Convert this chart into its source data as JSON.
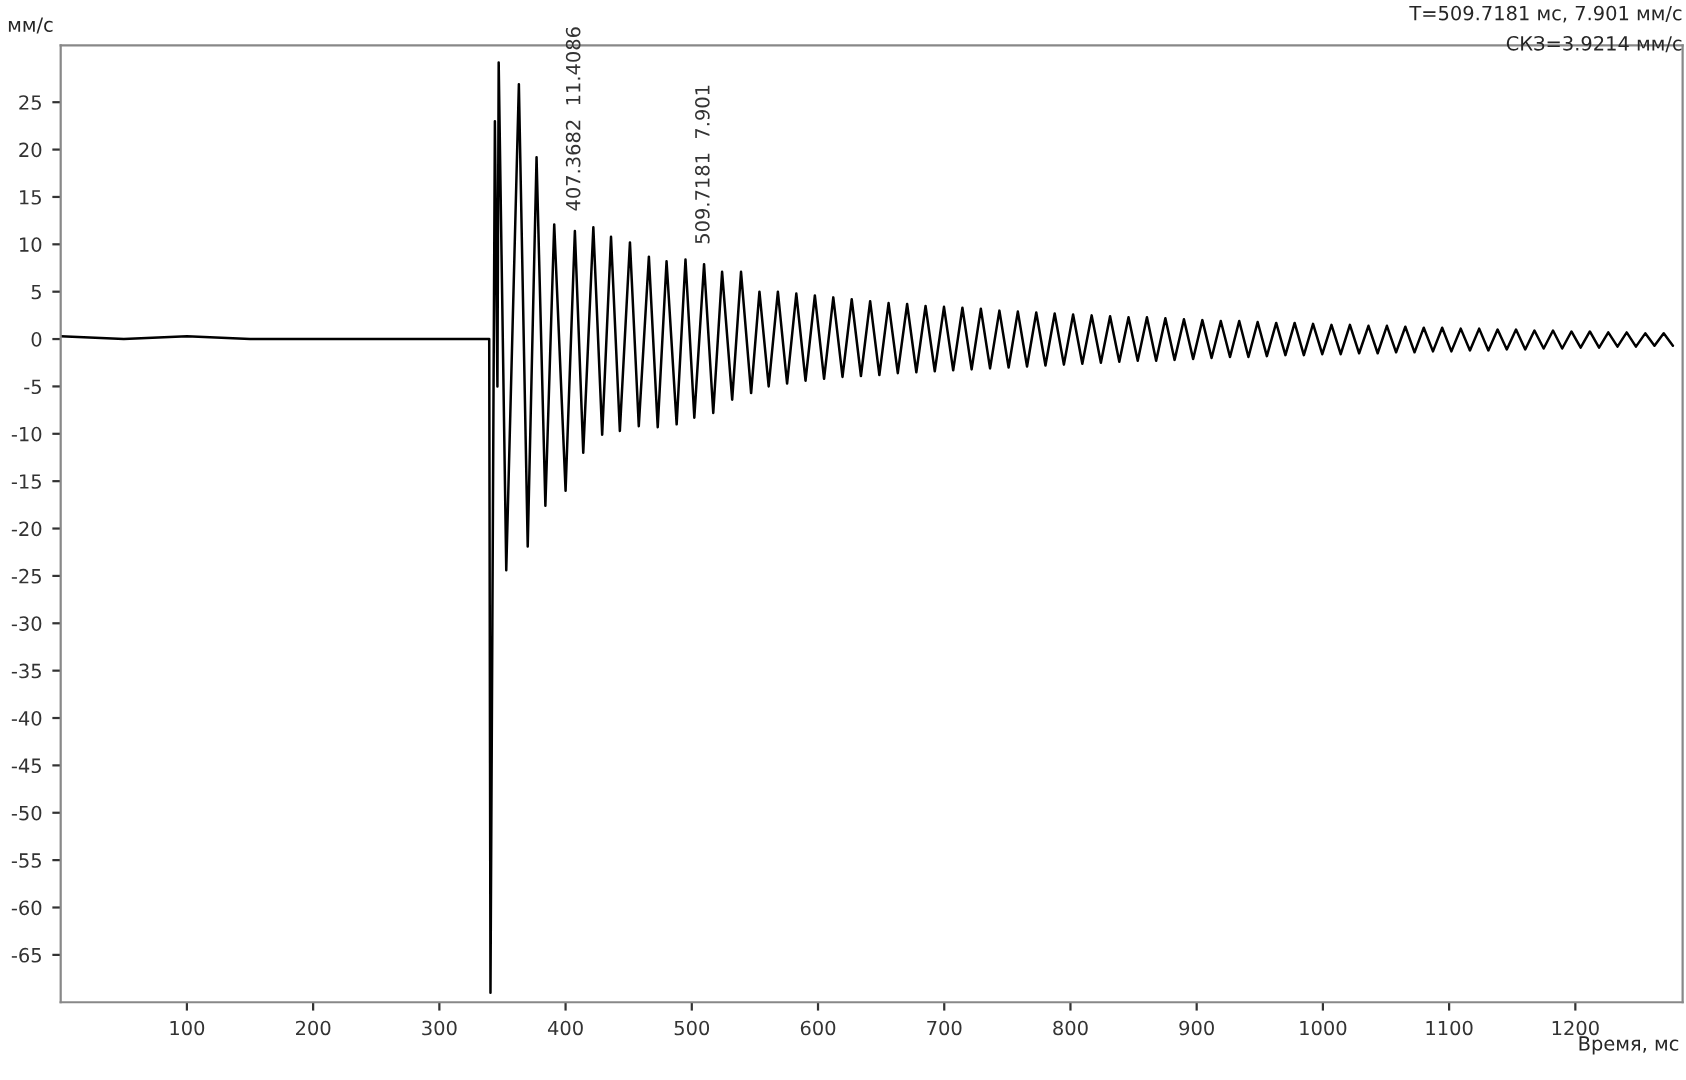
{
  "chart_data": {
    "type": "line",
    "xlabel": "Время, мс",
    "ylabel": "мм/с",
    "annotations": [
      "T=509.7181 мс, 7.901 мм/с",
      "СКЗ=3.9214 мм/с",
      {
        "text": "407.3682  11.4086",
        "x": 407.3682,
        "y": 11.4086
      },
      {
        "text": "509.7181  7.901",
        "x": 509.7181,
        "y": 7.901
      }
    ],
    "series": [
      {
        "color": "#000000",
        "x": [
          0,
          50,
          100,
          150,
          200,
          250,
          300,
          339.5,
          340.5,
          342,
          344,
          346,
          347,
          353,
          363,
          370,
          377,
          384,
          391,
          400,
          407.3682,
          414,
          422,
          429,
          436,
          443,
          451,
          458,
          466,
          473,
          480,
          488,
          495,
          502,
          509.7181,
          517,
          524,
          532,
          539,
          547,
          553.6,
          560.9,
          568.2,
          575.5,
          582.8,
          590.1,
          597.5,
          604.8,
          612.1,
          619.4,
          626.7,
          634.0,
          641.3,
          648.6,
          655.9,
          663.2,
          670.6,
          677.9,
          685.2,
          692.5,
          699.8,
          707.1,
          714.4,
          721.7,
          729.0,
          736.3,
          743.7,
          751.0,
          758.3,
          765.6,
          772.9,
          780.2,
          787.5,
          794.8,
          802.1,
          809.4,
          816.8,
          824.1,
          831.4,
          838.7,
          846.0,
          853.3,
          860.6,
          867.9,
          875.2,
          882.5,
          889.9,
          897.2,
          904.5,
          911.8,
          919.1,
          926.4,
          933.7,
          941.0,
          948.3,
          955.6,
          963.0,
          970.3,
          977.6,
          984.9,
          992.2,
          999.5,
          1006.8,
          1014.1,
          1021.4,
          1028.7,
          1036.1,
          1043.4,
          1050.7,
          1058.0,
          1065.3,
          1072.6,
          1079.9,
          1087.2,
          1094.5,
          1101.8,
          1109.2,
          1116.5,
          1123.8,
          1131.1,
          1138.4,
          1145.7,
          1153.0,
          1160.3,
          1167.6,
          1174.9,
          1182.3,
          1189.6,
          1196.9,
          1204.2,
          1211.5,
          1218.8,
          1226.1,
          1233.4,
          1240.7,
          1248.0,
          1255.4,
          1262.7,
          1270.0,
          1277.3
        ],
        "values": [
          0.3,
          0,
          0.3,
          0,
          0,
          0,
          0,
          0,
          -69,
          -30,
          23,
          -5,
          29.2,
          -24.4,
          26.9,
          -21.9,
          19.2,
          -17.6,
          12.1,
          -16,
          11.4086,
          -12,
          11.8,
          -10.1,
          10.8,
          -9.7,
          10.2,
          -9.2,
          8.7,
          -9.3,
          8.2,
          -9,
          8.4,
          -8.3,
          7.901,
          -7.8,
          7.1,
          -6.4,
          7.1,
          -5.7,
          5.0,
          -5.0,
          5.0,
          -4.7,
          4.8,
          -4.4,
          4.6,
          -4.2,
          4.4,
          -4.0,
          4.2,
          -3.9,
          4.0,
          -3.8,
          3.8,
          -3.6,
          3.7,
          -3.5,
          3.5,
          -3.4,
          3.4,
          -3.3,
          3.3,
          -3.2,
          3.2,
          -3.1,
          3.0,
          -3.0,
          2.9,
          -2.9,
          2.8,
          -2.8,
          2.7,
          -2.7,
          2.6,
          -2.6,
          2.5,
          -2.5,
          2.4,
          -2.4,
          2.3,
          -2.3,
          2.3,
          -2.3,
          2.2,
          -2.2,
          2.1,
          -2.1,
          2.0,
          -2.0,
          1.9,
          -1.9,
          1.9,
          -1.9,
          1.8,
          -1.8,
          1.7,
          -1.7,
          1.7,
          -1.7,
          1.6,
          -1.6,
          1.5,
          -1.6,
          1.5,
          -1.5,
          1.4,
          -1.5,
          1.4,
          -1.4,
          1.3,
          -1.4,
          1.2,
          -1.3,
          1.2,
          -1.3,
          1.1,
          -1.2,
          1.1,
          -1.2,
          1.0,
          -1.1,
          1.0,
          -1.1,
          0.9,
          -1.0,
          0.9,
          -1.0,
          0.8,
          -0.9,
          0.8,
          -0.9,
          0.7,
          -0.8,
          0.7,
          -0.8,
          0.6,
          -0.7,
          0.6,
          -0.7
        ]
      }
    ],
    "xlim": [
      0,
      1285
    ],
    "ylim": [
      -70,
      31
    ],
    "xticks": [
      100,
      200,
      300,
      400,
      500,
      600,
      700,
      800,
      900,
      1000,
      1100,
      1200
    ],
    "yticks": [
      25,
      20,
      15,
      10,
      5,
      0,
      -5,
      -10,
      -15,
      -20,
      -25,
      -30,
      -35,
      -40,
      -45,
      -50,
      -55,
      -60,
      -65
    ],
    "grid": false,
    "legend": false,
    "line_style": "solid",
    "marker": "none"
  }
}
